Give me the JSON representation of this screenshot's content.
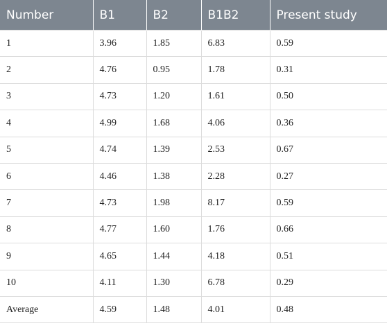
{
  "table": {
    "headers": [
      "Number",
      "B1",
      "B2",
      "B1B2",
      "Present study"
    ],
    "rows": [
      [
        "1",
        "3.96",
        "1.85",
        "6.83",
        "0.59"
      ],
      [
        "2",
        "4.76",
        "0.95",
        "1.78",
        "0.31"
      ],
      [
        "3",
        "4.73",
        "1.20",
        "1.61",
        "0.50"
      ],
      [
        "4",
        "4.99",
        "1.68",
        "4.06",
        "0.36"
      ],
      [
        "5",
        "4.74",
        "1.39",
        "2.53",
        "0.67"
      ],
      [
        "6",
        "4.46",
        "1.38",
        "2.28",
        "0.27"
      ],
      [
        "7",
        "4.73",
        "1.98",
        "8.17",
        "0.59"
      ],
      [
        "8",
        "4.77",
        "1.60",
        "1.76",
        "0.66"
      ],
      [
        "9",
        "4.65",
        "1.44",
        "4.18",
        "0.51"
      ],
      [
        "10",
        "4.11",
        "1.30",
        "6.78",
        "0.29"
      ],
      [
        "Average",
        "4.59",
        "1.48",
        "4.01",
        "0.48"
      ]
    ]
  },
  "colors": {
    "header_background": "#7d8690",
    "header_text": "#ffffff",
    "grid_line": "#dcdcdc"
  }
}
